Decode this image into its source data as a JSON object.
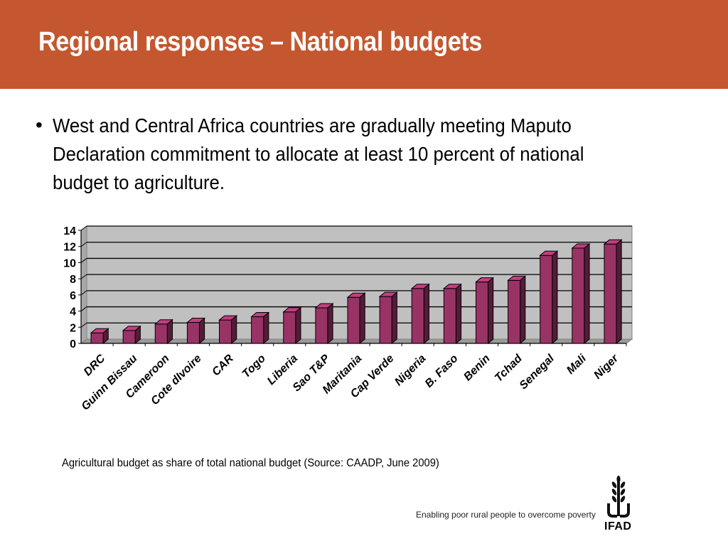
{
  "slide": {
    "title": "Regional responses – National budgets",
    "bullet": "West and Central Africa countries are gradually meeting Maputo Declaration commitment to allocate at least 10 percent of national budget to agriculture.",
    "caption": "Agricultural budget as share of total national budget (Source: CAADP, June 2009)",
    "tagline": "Enabling poor rural people to overcome poverty",
    "logo_text": "IFAD"
  },
  "colors": {
    "header": "#c4572f",
    "bar": "#993366",
    "plot_background": "#c0c0c0"
  },
  "chart_data": {
    "type": "bar",
    "title": "",
    "xlabel": "",
    "ylabel": "",
    "ylim": [
      0,
      14
    ],
    "yticks": [
      0,
      2,
      4,
      6,
      8,
      10,
      12,
      14
    ],
    "grid": true,
    "three_d": true,
    "categories": [
      "DRC",
      "Guinn Bissau",
      "Cameroon",
      "Cote dIvoire",
      "CAR",
      "Togo",
      "Liberia",
      "Sao T&P",
      "Maritania",
      "Cap Verde",
      "Nigeria",
      "B. Faso",
      "Benin",
      "Tchad",
      "Senegal",
      "Mali",
      "Niger"
    ],
    "values": [
      1.3,
      1.6,
      2.4,
      2.6,
      2.9,
      3.3,
      3.9,
      4.4,
      5.7,
      5.8,
      6.8,
      6.8,
      7.6,
      7.8,
      10.9,
      11.8,
      12.3
    ]
  }
}
